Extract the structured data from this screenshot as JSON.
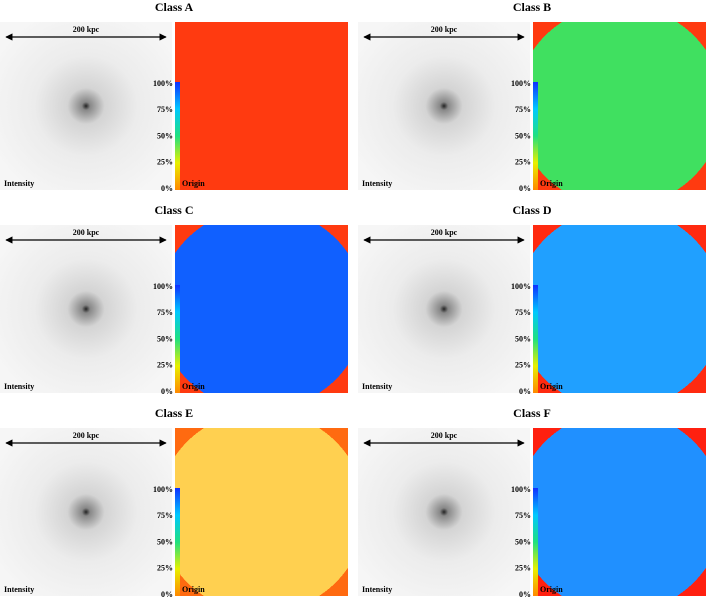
{
  "panels": [
    {
      "title": "Class A"
    },
    {
      "title": "Class B"
    },
    {
      "title": "Class C"
    },
    {
      "title": "Class D"
    },
    {
      "title": "Class E"
    },
    {
      "title": "Class F"
    }
  ],
  "scale_label": "200 kpc",
  "intensity_label": "Intensity",
  "origin_label": "Origin",
  "colorbar_ticks": [
    "100%",
    "75%",
    "50%",
    "25%",
    "0%"
  ]
}
